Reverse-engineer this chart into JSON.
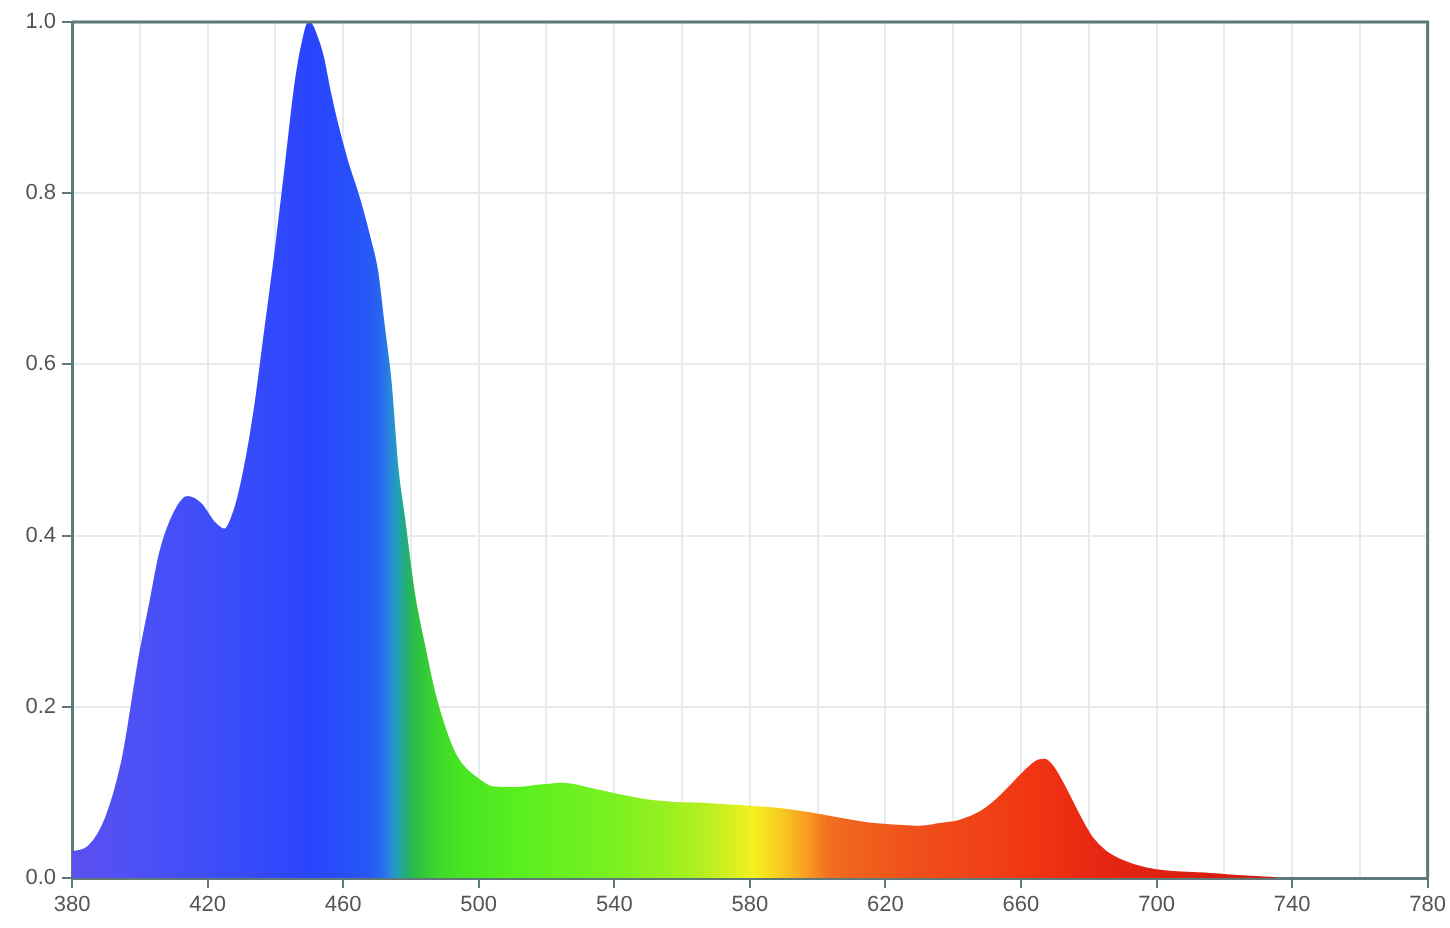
{
  "chart_data": {
    "type": "area",
    "x": [
      380,
      385,
      390,
      395,
      400,
      403,
      406,
      410,
      414,
      418,
      422,
      425,
      428,
      431,
      434,
      437,
      440,
      443,
      446,
      448,
      450,
      452,
      454,
      456,
      458,
      461,
      465,
      468,
      470,
      472,
      474,
      476,
      478,
      481,
      484,
      487,
      490,
      493,
      496,
      500,
      504,
      510,
      518,
      525,
      532,
      540,
      549,
      557,
      565,
      573,
      581,
      590,
      597,
      603,
      610,
      617,
      624,
      630,
      636,
      642,
      648,
      653,
      658,
      662,
      665,
      667,
      669,
      672,
      675,
      678,
      681,
      685,
      690,
      697,
      705,
      715,
      725,
      735
    ],
    "series": [
      {
        "values": [
          0.03,
          0.037,
          0.07,
          0.14,
          0.26,
          0.32,
          0.38,
          0.425,
          0.445,
          0.437,
          0.415,
          0.407,
          0.43,
          0.48,
          0.55,
          0.64,
          0.73,
          0.83,
          0.93,
          0.975,
          1.0,
          0.985,
          0.96,
          0.92,
          0.885,
          0.84,
          0.79,
          0.745,
          0.71,
          0.645,
          0.58,
          0.48,
          0.42,
          0.33,
          0.27,
          0.215,
          0.175,
          0.145,
          0.128,
          0.115,
          0.106,
          0.105,
          0.108,
          0.11,
          0.105,
          0.098,
          0.091,
          0.088,
          0.087,
          0.085,
          0.083,
          0.08,
          0.076,
          0.072,
          0.067,
          0.063,
          0.061,
          0.06,
          0.063,
          0.067,
          0.077,
          0.092,
          0.112,
          0.128,
          0.137,
          0.138,
          0.132,
          0.113,
          0.09,
          0.067,
          0.047,
          0.031,
          0.02,
          0.011,
          0.007,
          0.005,
          0.002,
          0.0
        ],
        "colors": [
          "#5c50f0",
          "#5850f2",
          "#5450f3",
          "#5050f4",
          "#4c50f5",
          "#4a50f6",
          "#484ff6",
          "#454ff7",
          "#424ef7",
          "#404ef8",
          "#3d4df8",
          "#3b4cf9",
          "#394cf9",
          "#374bfa",
          "#354afa",
          "#3349fb",
          "#3148fb",
          "#2f47fc",
          "#2d46fc",
          "#2b45fd",
          "#2944fd",
          "#2846fd",
          "#2848fc",
          "#284afc",
          "#284cfb",
          "#284ffa",
          "#2854f8",
          "#285af5",
          "#2862f0",
          "#2870e8",
          "#2888da",
          "#24a0b8",
          "#20aa80",
          "#2cbc48",
          "#34c838",
          "#3cd430",
          "#40dc28",
          "#44e224",
          "#48e622",
          "#4ce820",
          "#50ea20",
          "#58ee20",
          "#60f020",
          "#68f020",
          "#70f020",
          "#7cf020",
          "#8cf020",
          "#9cf020",
          "#b0f020",
          "#d0f020",
          "#f4f020",
          "#f8c820",
          "#f89a20",
          "#f07020",
          "#f06420",
          "#f05c1c",
          "#f0541c",
          "#f04e1a",
          "#f04a18",
          "#f04618",
          "#f04218",
          "#f03e16",
          "#f03a14",
          "#f03612",
          "#f03412",
          "#f03212",
          "#f03012",
          "#ee2e12",
          "#ec2c12",
          "#ea2a12",
          "#e82812",
          "#e62612",
          "#e42412",
          "#e02212",
          "#dc2012",
          "#d81e12",
          "#d41c12",
          "#d01a12"
        ]
      }
    ],
    "xlim": [
      380,
      780
    ],
    "xticks": [
      380,
      {
        "value": 400,
        "label": null
      },
      420,
      {
        "value": 440,
        "label": null
      },
      460,
      {
        "value": 480,
        "label": null
      },
      500,
      {
        "value": 520,
        "label": null
      },
      540,
      {
        "value": 560,
        "label": null
      },
      580,
      {
        "value": 600,
        "label": null
      },
      620,
      {
        "value": 640,
        "label": null
      },
      660,
      {
        "value": 680,
        "label": null
      },
      700,
      {
        "value": 720,
        "label": null
      },
      740,
      {
        "value": 760,
        "label": null
      },
      780
    ],
    "ylim": [
      0,
      1
    ],
    "yticks": [
      {
        "value": 0,
        "label": "0.0"
      },
      0.2,
      0.4,
      0.6,
      0.8,
      {
        "value": 1,
        "label": "1.0"
      }
    ],
    "grid": true
  }
}
